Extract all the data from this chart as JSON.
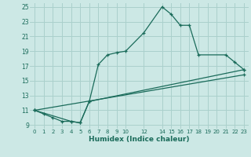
{
  "xlabel": "Humidex (Indice chaleur)",
  "bg_color": "#cce8e5",
  "grid_color": "#aad0cc",
  "line_color": "#1a6b5a",
  "xlim": [
    -0.5,
    23.5
  ],
  "ylim": [
    8.5,
    25.5
  ],
  "xticks": [
    0,
    1,
    2,
    3,
    4,
    5,
    6,
    7,
    8,
    9,
    10,
    12,
    14,
    15,
    16,
    17,
    18,
    19,
    20,
    21,
    22,
    23
  ],
  "yticks": [
    9,
    11,
    13,
    15,
    17,
    19,
    21,
    23,
    25
  ],
  "line1_x": [
    0,
    1,
    2,
    3,
    4,
    5,
    6,
    7,
    8,
    9,
    10,
    12,
    14,
    15,
    16,
    17,
    18,
    21,
    22,
    23
  ],
  "line1_y": [
    11,
    10.5,
    10.0,
    9.5,
    9.5,
    9.3,
    12.2,
    17.2,
    18.5,
    18.8,
    19.0,
    21.5,
    25.0,
    24.0,
    22.5,
    22.5,
    18.5,
    18.5,
    17.5,
    16.5
  ],
  "line2_x": [
    0,
    4,
    5,
    6,
    23
  ],
  "line2_y": [
    11,
    9.5,
    9.3,
    12.2,
    16.5
  ],
  "line3_x": [
    0,
    23
  ],
  "line3_y": [
    11,
    15.8
  ]
}
